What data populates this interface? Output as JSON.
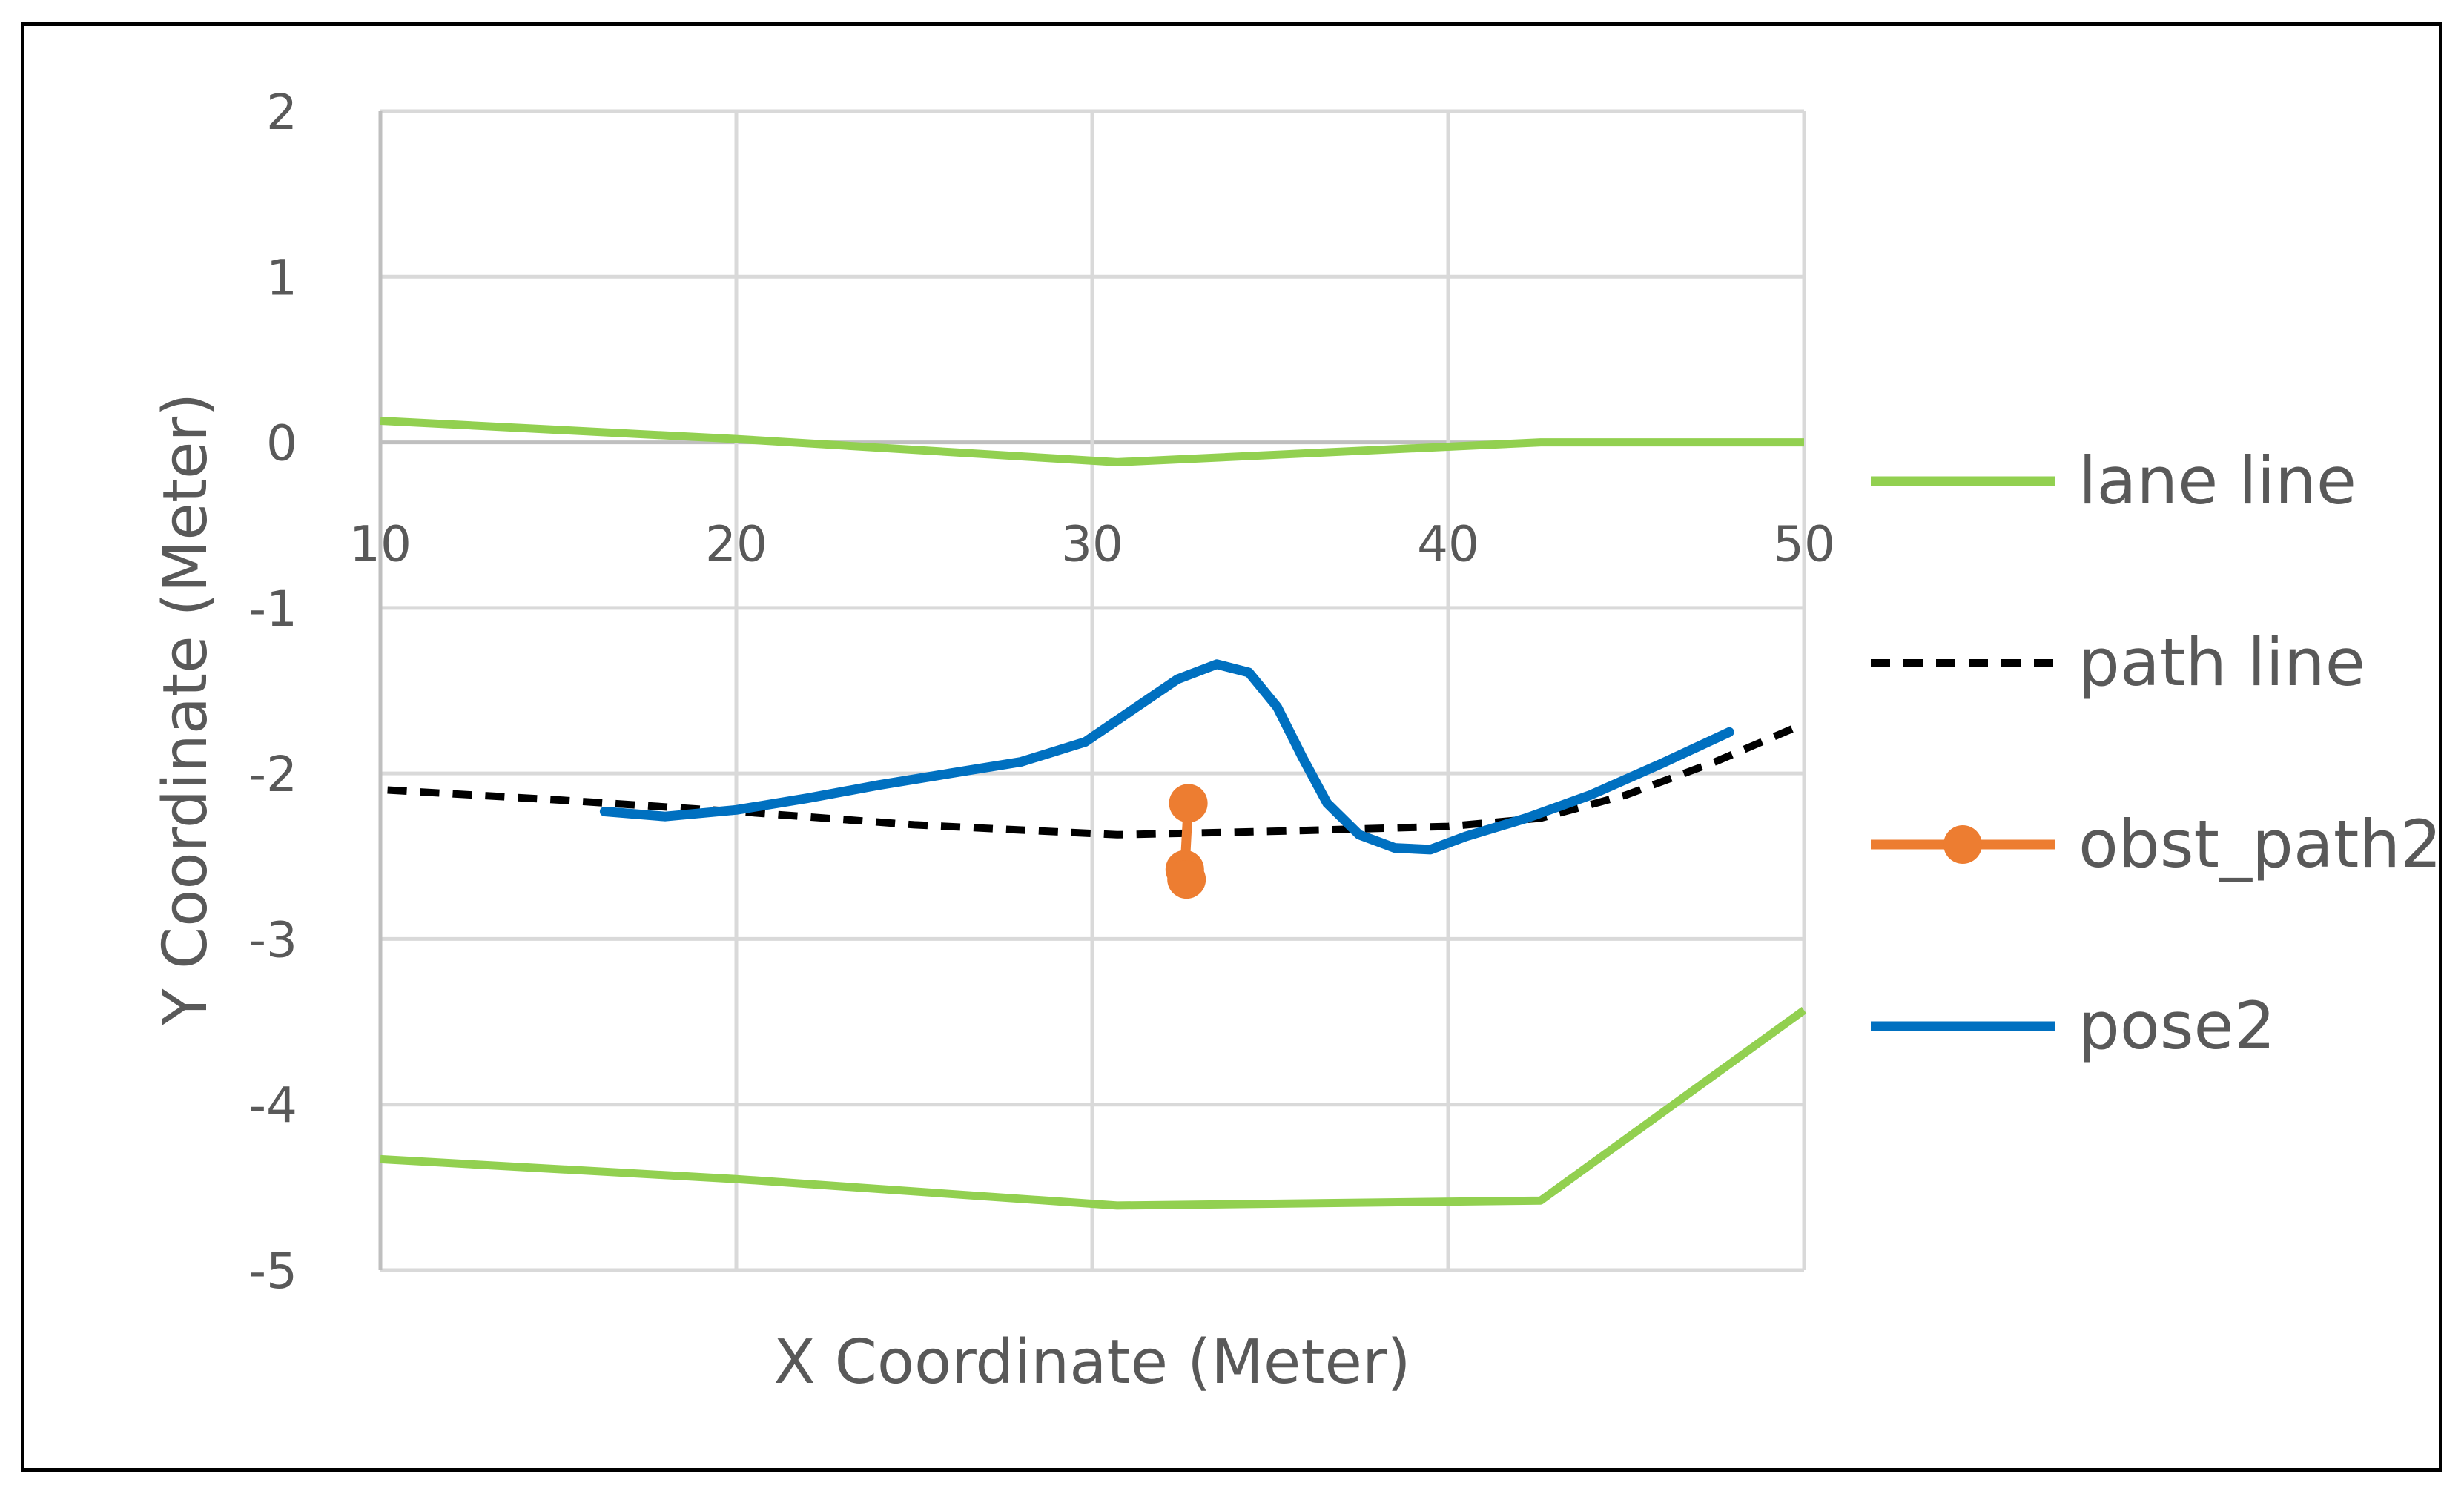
{
  "chart_data": {
    "type": "line",
    "xlabel": "X Coordinate (Meter)",
    "ylabel": "Y Coordinate (Meter)",
    "xlim": [
      10,
      50
    ],
    "ylim": [
      -5,
      2
    ],
    "x_ticks": [
      10,
      20,
      30,
      40,
      50
    ],
    "y_ticks": [
      2,
      1,
      0,
      -1,
      -2,
      -3,
      -4,
      -5
    ],
    "grid": true,
    "legend_position": "right",
    "series": [
      {
        "name": "lane line",
        "color": "#92D050",
        "style": "solid",
        "segments": [
          [
            [
              10,
              0.13
            ],
            [
              20,
              0.02
            ],
            [
              30.7,
              -0.12
            ],
            [
              42.6,
              0.0
            ],
            [
              50,
              0.0
            ]
          ],
          [
            [
              10,
              -4.33
            ],
            [
              20,
              -4.45
            ],
            [
              30.7,
              -4.61
            ],
            [
              42.6,
              -4.58
            ],
            [
              50,
              -3.43
            ]
          ]
        ]
      },
      {
        "name": "path line",
        "color": "#000000",
        "style": "dashed",
        "points": [
          [
            10.2,
            -2.1
          ],
          [
            15,
            -2.16
          ],
          [
            20,
            -2.23
          ],
          [
            25,
            -2.31
          ],
          [
            30.7,
            -2.37
          ],
          [
            35,
            -2.35
          ],
          [
            40,
            -2.32
          ],
          [
            42.6,
            -2.27
          ],
          [
            45,
            -2.13
          ],
          [
            47.5,
            -1.93
          ],
          [
            50,
            -1.7
          ]
        ]
      },
      {
        "name": "obst_path2",
        "color": "#ED7D31",
        "style": "solid-markers",
        "points": [
          [
            32.7,
            -2.18
          ],
          [
            32.6,
            -2.58
          ],
          [
            32.65,
            -2.64
          ]
        ]
      },
      {
        "name": "pose2",
        "color": "#0070C0",
        "style": "solid",
        "points": [
          [
            16.3,
            -2.23
          ],
          [
            18,
            -2.26
          ],
          [
            20,
            -2.22
          ],
          [
            22,
            -2.15
          ],
          [
            24,
            -2.07
          ],
          [
            26,
            -2.0
          ],
          [
            28,
            -1.93
          ],
          [
            29.8,
            -1.81
          ],
          [
            31.1,
            -1.62
          ],
          [
            32.4,
            -1.43
          ],
          [
            33.5,
            -1.34
          ],
          [
            34.4,
            -1.39
          ],
          [
            35.2,
            -1.6
          ],
          [
            35.9,
            -1.9
          ],
          [
            36.6,
            -2.18
          ],
          [
            37.5,
            -2.37
          ],
          [
            38.5,
            -2.45
          ],
          [
            39.5,
            -2.46
          ],
          [
            40.5,
            -2.38
          ],
          [
            42.2,
            -2.27
          ],
          [
            44,
            -2.13
          ],
          [
            46,
            -1.94
          ],
          [
            47.9,
            -1.75
          ]
        ]
      }
    ]
  }
}
